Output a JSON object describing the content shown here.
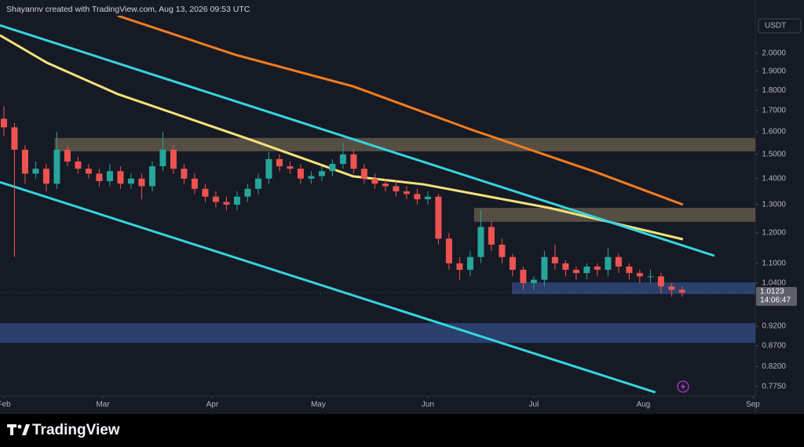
{
  "header": "Shayannv created with TradingView.com, Aug 13, 2026 09:53 UTC",
  "brand": "TradingView",
  "chart_data": {
    "type": "candlestick",
    "currency": "USDT",
    "log_scale": true,
    "xlim": [
      -1.1,
      212.7
    ],
    "xticks": [
      {
        "value": 0,
        "label": "Feb"
      },
      {
        "value": 28,
        "label": "Mar"
      },
      {
        "value": 59,
        "label": "Apr"
      },
      {
        "value": 89,
        "label": "May"
      },
      {
        "value": 120,
        "label": "Jun"
      },
      {
        "value": 150,
        "label": "Jul"
      },
      {
        "value": 181,
        "label": "Aug"
      },
      {
        "value": 212,
        "label": "Sep"
      }
    ],
    "ylim": [
      0.754,
      2.226
    ],
    "yticks": [
      {
        "value": 2,
        "label": "2.0000"
      },
      {
        "value": 1.9,
        "label": "1.9000"
      },
      {
        "value": 1.8,
        "label": "1.8000"
      },
      {
        "value": 1.7,
        "label": "1.7000"
      },
      {
        "value": 1.6,
        "label": "1.6000"
      },
      {
        "value": 1.5,
        "label": "1.5000"
      },
      {
        "value": 1.4,
        "label": "1.4000"
      },
      {
        "value": 1.3,
        "label": "1.3000"
      },
      {
        "value": 1.2,
        "label": "1.2000"
      },
      {
        "value": 1.1,
        "label": "1.1000"
      },
      {
        "value": 1.04,
        "label": "1.0400"
      },
      {
        "value": 0.92,
        "label": "0.9200"
      },
      {
        "value": 0.87,
        "label": "0.8700"
      },
      {
        "value": 0.82,
        "label": "0.8200"
      },
      {
        "value": 0.775,
        "label": "0.7750"
      }
    ],
    "up_color": "#26a69a",
    "down_color": "#ef5350",
    "last_price": {
      "value": 1.0123,
      "label": "1.0123"
    },
    "countdown": "14:06:47",
    "candles": {
      "x": [
        0,
        3,
        6,
        9,
        12,
        15,
        18,
        21,
        24,
        27,
        30,
        33,
        36,
        39,
        42,
        45,
        48,
        51,
        54,
        57,
        60,
        63,
        66,
        69,
        72,
        75,
        78,
        81,
        84,
        87,
        90,
        93,
        96,
        99,
        102,
        105,
        108,
        111,
        114,
        117,
        120,
        123,
        126,
        129,
        132,
        135,
        138,
        141,
        144,
        147,
        150,
        153,
        156,
        159,
        162,
        165,
        168,
        171,
        174,
        177,
        180,
        183,
        186,
        189,
        192
      ],
      "open": [
        1.66,
        1.62,
        1.52,
        1.42,
        1.44,
        1.38,
        1.52,
        1.47,
        1.44,
        1.42,
        1.39,
        1.43,
        1.38,
        1.4,
        1.37,
        1.45,
        1.52,
        1.44,
        1.4,
        1.36,
        1.33,
        1.31,
        1.3,
        1.33,
        1.36,
        1.4,
        1.48,
        1.45,
        1.44,
        1.4,
        1.41,
        1.43,
        1.46,
        1.5,
        1.44,
        1.4,
        1.38,
        1.37,
        1.35,
        1.34,
        1.32,
        1.33,
        1.18,
        1.1,
        1.08,
        1.12,
        1.22,
        1.16,
        1.12,
        1.08,
        1.04,
        1.05,
        1.12,
        1.1,
        1.08,
        1.07,
        1.09,
        1.08,
        1.12,
        1.09,
        1.07,
        1.06,
        1.06,
        1.03,
        1.02
      ],
      "high": [
        1.72,
        1.64,
        1.54,
        1.47,
        1.46,
        1.6,
        1.54,
        1.49,
        1.46,
        1.44,
        1.46,
        1.45,
        1.42,
        1.42,
        1.47,
        1.6,
        1.54,
        1.46,
        1.42,
        1.38,
        1.35,
        1.33,
        1.35,
        1.38,
        1.42,
        1.51,
        1.5,
        1.47,
        1.46,
        1.43,
        1.45,
        1.48,
        1.55,
        1.52,
        1.46,
        1.42,
        1.4,
        1.39,
        1.37,
        1.36,
        1.35,
        1.34,
        1.2,
        1.12,
        1.14,
        1.28,
        1.24,
        1.18,
        1.13,
        1.09,
        1.06,
        1.14,
        1.16,
        1.11,
        1.09,
        1.1,
        1.1,
        1.15,
        1.13,
        1.1,
        1.08,
        1.08,
        1.07,
        1.04,
        1.03
      ],
      "low": [
        1.58,
        1.12,
        1.38,
        1.4,
        1.35,
        1.36,
        1.45,
        1.42,
        1.4,
        1.37,
        1.37,
        1.36,
        1.36,
        1.32,
        1.35,
        1.43,
        1.42,
        1.38,
        1.34,
        1.31,
        1.29,
        1.28,
        1.28,
        1.31,
        1.34,
        1.38,
        1.43,
        1.42,
        1.38,
        1.38,
        1.39,
        1.41,
        1.44,
        1.42,
        1.38,
        1.36,
        1.35,
        1.33,
        1.32,
        1.3,
        1.3,
        1.16,
        1.08,
        1.05,
        1.06,
        1.1,
        1.14,
        1.1,
        1.06,
        1.02,
        1.02,
        1.03,
        1.08,
        1.06,
        1.05,
        1.05,
        1.06,
        1.06,
        1.07,
        1.05,
        1.04,
        1.04,
        1.01,
        1.0,
        1.0
      ],
      "close": [
        1.62,
        1.52,
        1.42,
        1.44,
        1.38,
        1.52,
        1.47,
        1.44,
        1.42,
        1.39,
        1.43,
        1.38,
        1.4,
        1.37,
        1.45,
        1.52,
        1.44,
        1.4,
        1.36,
        1.33,
        1.31,
        1.3,
        1.33,
        1.36,
        1.4,
        1.48,
        1.45,
        1.44,
        1.4,
        1.41,
        1.43,
        1.46,
        1.5,
        1.44,
        1.4,
        1.38,
        1.37,
        1.35,
        1.34,
        1.32,
        1.33,
        1.18,
        1.1,
        1.08,
        1.12,
        1.22,
        1.16,
        1.12,
        1.08,
        1.04,
        1.05,
        1.12,
        1.1,
        1.08,
        1.07,
        1.09,
        1.08,
        1.12,
        1.09,
        1.07,
        1.06,
        1.06,
        1.03,
        1.02,
        1.0123
      ]
    },
    "overlays": [
      {
        "color": "#f57c1f",
        "x": [
          32.2,
          65.6,
          98.9,
          132.2,
          167.8,
          192.2
        ],
        "values": [
          2.226,
          1.991,
          1.82,
          1.61,
          1.425,
          1.3
        ]
      },
      {
        "color": "#f5e27a",
        "x": [
          -1.1,
          12.2,
          32.2,
          70,
          98.9,
          118.9,
          154.4,
          192.2
        ],
        "values": [
          2.105,
          1.947,
          1.781,
          1.563,
          1.409,
          1.377,
          1.288,
          1.178
        ]
      },
      {
        "color": "#35d5df",
        "x": [
          -1.1,
          201.1
        ],
        "values": [
          2.166,
          1.124
        ]
      },
      {
        "color": "#35d5df",
        "x": [
          -1.1,
          184.4
        ],
        "values": [
          1.386,
          0.762
        ]
      }
    ],
    "zones": [
      {
        "color": "#8a7a5c",
        "x_start": 14.4,
        "low": 1.513,
        "high": 1.572
      },
      {
        "color": "#8a7a5c",
        "x_start": 133.1,
        "low": 1.238,
        "high": 1.288
      },
      {
        "color": "#3d5fa8",
        "x_start": 143.8,
        "low": 1.008,
        "high": 1.042
      },
      {
        "color": "#3d5fa8",
        "x_start": -1.1,
        "low": 0.877,
        "high": 0.928
      }
    ]
  }
}
